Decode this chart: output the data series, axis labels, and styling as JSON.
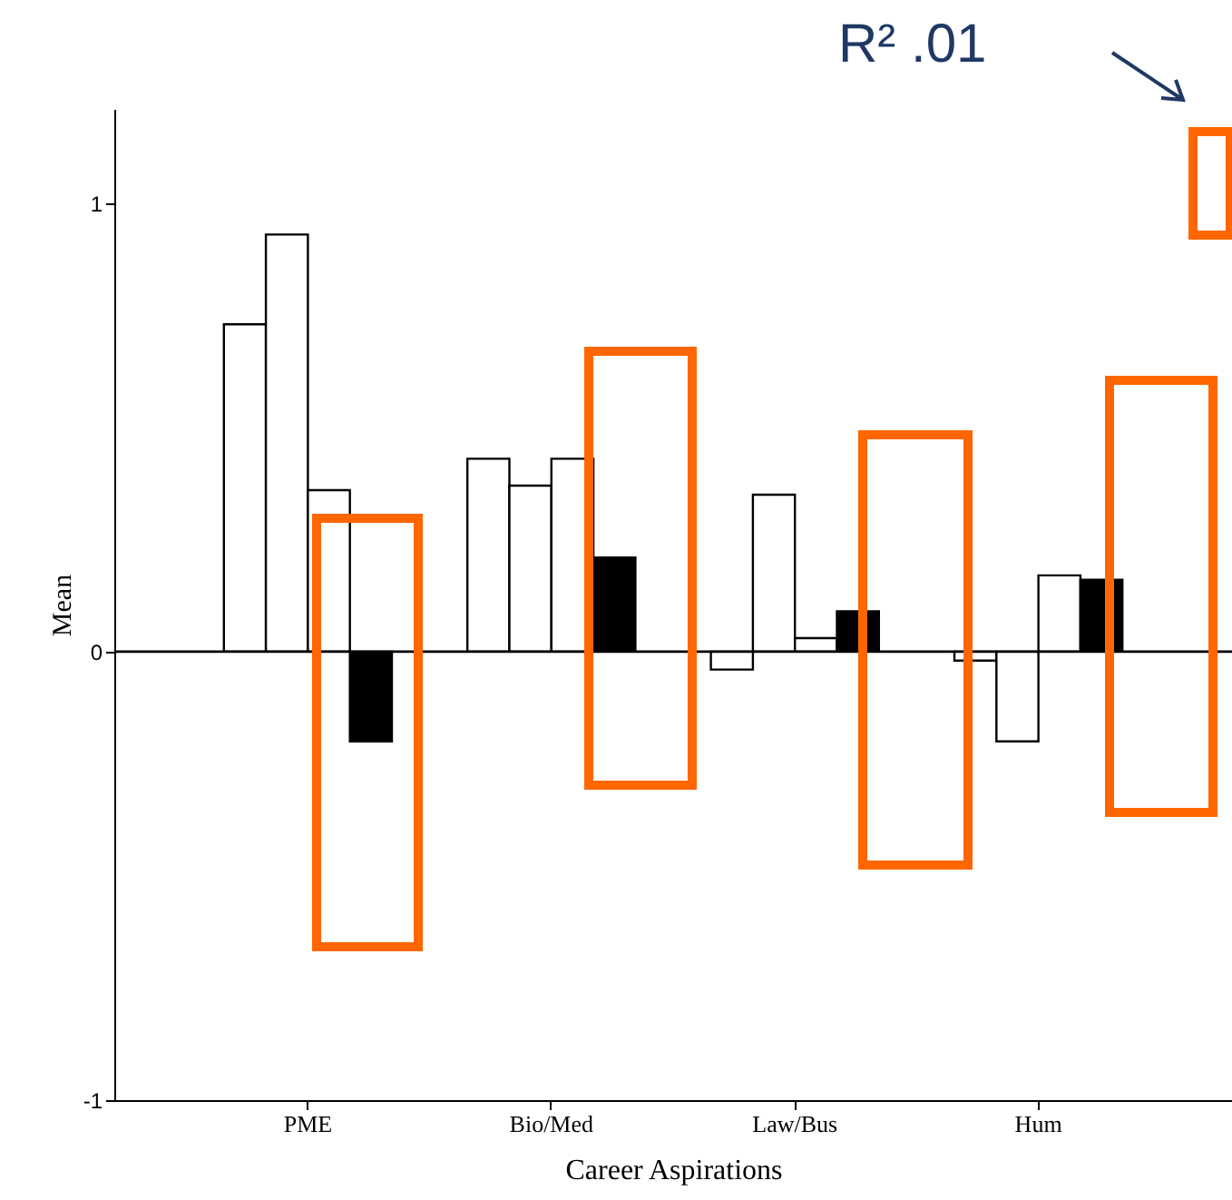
{
  "chart_data": {
    "type": "bar",
    "xlabel": "Career Aspirations",
    "ylabel": "Mean",
    "categories": [
      "PME",
      "Bio/Med",
      "Law/Bus",
      "Hum"
    ],
    "series": [
      {
        "color": "#ffffff",
        "values": [
          0.73,
          0.43,
          -0.04,
          -0.02
        ]
      },
      {
        "color": "#ffffff",
        "values": [
          0.93,
          0.37,
          0.35,
          -0.2
        ]
      },
      {
        "color": "#ffffff",
        "values": [
          0.36,
          0.43,
          0.03,
          0.17
        ]
      },
      {
        "color": "#000000",
        "values": [
          -0.2,
          0.21,
          0.09,
          0.16
        ]
      }
    ],
    "ylim": [
      -1,
      1.21
    ],
    "yticks": [
      -1,
      0,
      1
    ],
    "grid": false,
    "ref_lines": [
      {
        "axis": "y",
        "value": 0
      }
    ],
    "annotations": [
      "R² .01"
    ]
  }
}
